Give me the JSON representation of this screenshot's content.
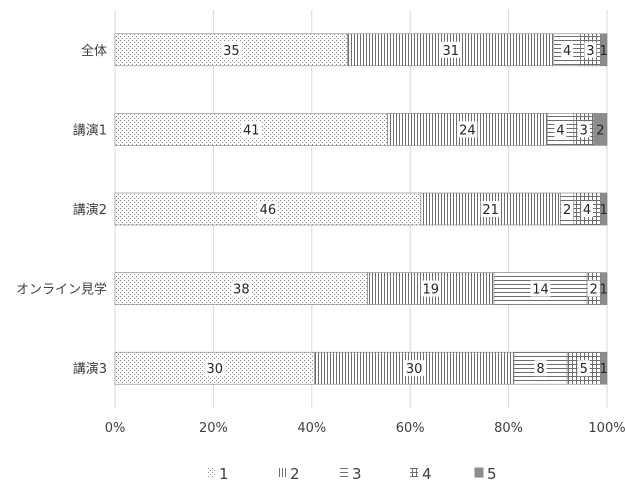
{
  "chart_data": {
    "type": "bar",
    "orientation": "horizontal",
    "stacked": "percent",
    "categories": [
      "全体",
      "講演1",
      "講演2",
      "オンライン見学",
      "講演3"
    ],
    "series": [
      {
        "name": "1",
        "values": [
          35,
          41,
          46,
          38,
          30
        ],
        "pattern": "dots"
      },
      {
        "name": "2",
        "values": [
          31,
          24,
          21,
          19,
          30
        ],
        "pattern": "vertical"
      },
      {
        "name": "3",
        "values": [
          4,
          4,
          2,
          14,
          8
        ],
        "pattern": "horizontal"
      },
      {
        "name": "4",
        "values": [
          3,
          3,
          4,
          2,
          5
        ],
        "pattern": "grid"
      },
      {
        "name": "5",
        "values": [
          1,
          2,
          1,
          1,
          1
        ],
        "pattern": "solid"
      }
    ],
    "x_ticks": [
      "0%",
      "20%",
      "40%",
      "60%",
      "80%",
      "100%"
    ],
    "xlim": [
      0,
      100
    ],
    "grid": true,
    "legend_position": "bottom",
    "title": "",
    "xlabel": "",
    "ylabel": ""
  }
}
